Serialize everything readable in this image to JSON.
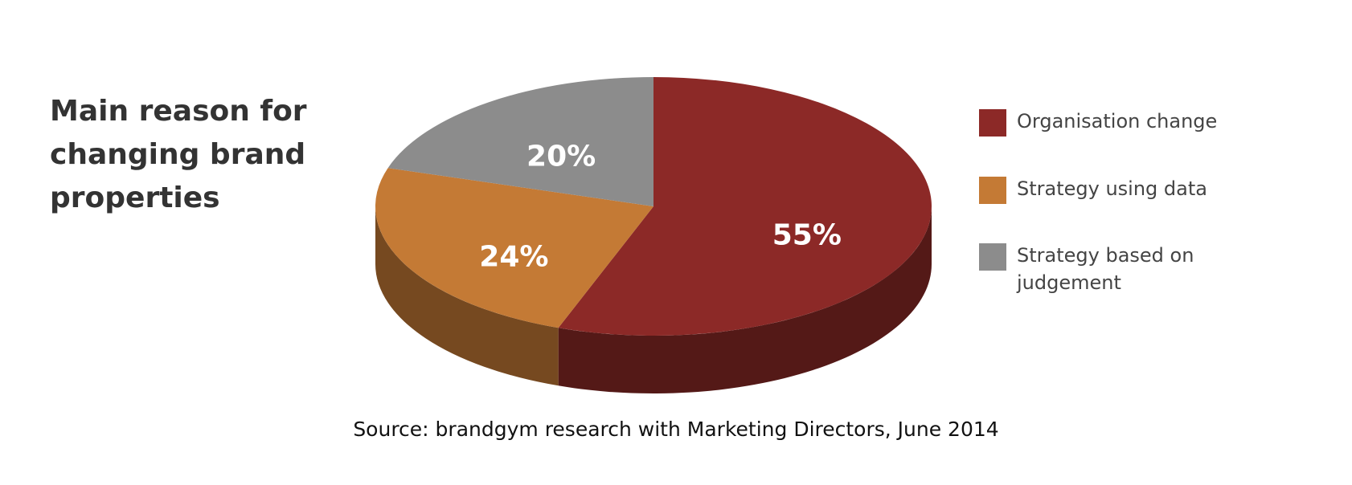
{
  "chart_data": {
    "type": "pie",
    "title": "Main reason for changing brand properties",
    "categories": [
      "Organisation change",
      "Strategy using data",
      "Strategy based on judgement"
    ],
    "values": [
      55,
      24,
      20
    ],
    "value_labels": [
      "55%",
      "24%",
      "20%"
    ],
    "colors": [
      "#8c2927",
      "#c47a35",
      "#8c8c8c"
    ],
    "source": "Source: brandgym research with Marketing Directors, June 2014"
  }
}
